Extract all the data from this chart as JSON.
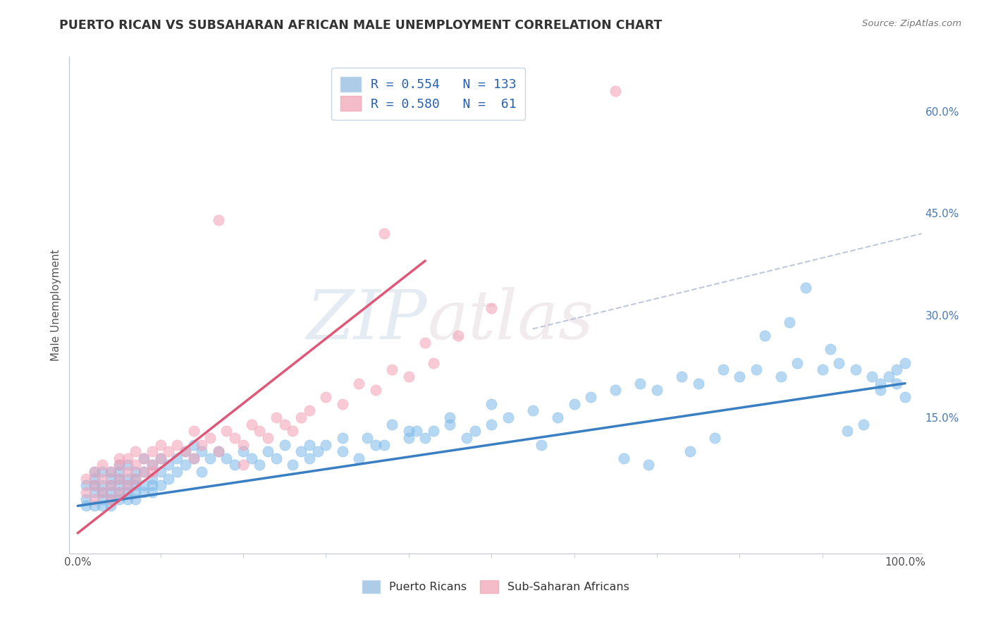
{
  "title": "PUERTO RICAN VS SUBSAHARAN AFRICAN MALE UNEMPLOYMENT CORRELATION CHART",
  "source": "Source: ZipAtlas.com",
  "ylabel": "Male Unemployment",
  "watermark_zip": "ZIP",
  "watermark_atlas": "atlas",
  "blue_color": "#7bb8e8",
  "pink_color": "#f4a0b5",
  "blue_line_color": "#3a7fc1",
  "pink_line_color": "#e05878",
  "dashed_line_color": "#b8c4d8",
  "xlim": [
    -0.01,
    1.02
  ],
  "ylim": [
    -0.05,
    0.68
  ],
  "ytick_positions": [
    0.0,
    0.15,
    0.3,
    0.45,
    0.6
  ],
  "ytick_labels": [
    "",
    "15.0%",
    "30.0%",
    "45.0%",
    "60.0%"
  ],
  "xtick_positions": [
    0.0,
    1.0
  ],
  "xtick_labels": [
    "0.0%",
    "100.0%"
  ],
  "blue_scatter_x": [
    0.01,
    0.01,
    0.01,
    0.02,
    0.02,
    0.02,
    0.02,
    0.02,
    0.03,
    0.03,
    0.03,
    0.03,
    0.03,
    0.04,
    0.04,
    0.04,
    0.04,
    0.04,
    0.04,
    0.05,
    0.05,
    0.05,
    0.05,
    0.05,
    0.05,
    0.06,
    0.06,
    0.06,
    0.06,
    0.06,
    0.07,
    0.07,
    0.07,
    0.07,
    0.07,
    0.08,
    0.08,
    0.08,
    0.08,
    0.09,
    0.09,
    0.09,
    0.09,
    0.1,
    0.1,
    0.1,
    0.11,
    0.11,
    0.12,
    0.12,
    0.13,
    0.13,
    0.14,
    0.14,
    0.15,
    0.15,
    0.16,
    0.17,
    0.18,
    0.19,
    0.2,
    0.21,
    0.22,
    0.23,
    0.24,
    0.25,
    0.27,
    0.28,
    0.3,
    0.32,
    0.35,
    0.37,
    0.4,
    0.41,
    0.43,
    0.45,
    0.47,
    0.5,
    0.52,
    0.55,
    0.58,
    0.6,
    0.62,
    0.65,
    0.68,
    0.7,
    0.73,
    0.75,
    0.78,
    0.8,
    0.82,
    0.85,
    0.87,
    0.9,
    0.92,
    0.94,
    0.96,
    0.97,
    0.98,
    0.99,
    1.0,
    0.97,
    0.99,
    1.0,
    0.95,
    0.93,
    0.88,
    0.91,
    0.83,
    0.86,
    0.74,
    0.77,
    0.66,
    0.69,
    0.56,
    0.48,
    0.42,
    0.36,
    0.29,
    0.34,
    0.26,
    0.4,
    0.45,
    0.5,
    0.38,
    0.32,
    0.28
  ],
  "blue_scatter_y": [
    0.03,
    0.05,
    0.02,
    0.04,
    0.06,
    0.02,
    0.05,
    0.07,
    0.03,
    0.05,
    0.07,
    0.02,
    0.04,
    0.03,
    0.05,
    0.07,
    0.02,
    0.04,
    0.06,
    0.04,
    0.06,
    0.08,
    0.03,
    0.05,
    0.07,
    0.04,
    0.06,
    0.08,
    0.03,
    0.05,
    0.05,
    0.07,
    0.03,
    0.04,
    0.06,
    0.05,
    0.07,
    0.09,
    0.04,
    0.06,
    0.08,
    0.04,
    0.05,
    0.07,
    0.09,
    0.05,
    0.08,
    0.06,
    0.07,
    0.09,
    0.08,
    0.1,
    0.09,
    0.11,
    0.1,
    0.07,
    0.09,
    0.1,
    0.09,
    0.08,
    0.1,
    0.09,
    0.08,
    0.1,
    0.09,
    0.11,
    0.1,
    0.09,
    0.11,
    0.1,
    0.12,
    0.11,
    0.12,
    0.13,
    0.13,
    0.14,
    0.12,
    0.14,
    0.15,
    0.16,
    0.15,
    0.17,
    0.18,
    0.19,
    0.2,
    0.19,
    0.21,
    0.2,
    0.22,
    0.21,
    0.22,
    0.21,
    0.23,
    0.22,
    0.23,
    0.22,
    0.21,
    0.2,
    0.21,
    0.22,
    0.23,
    0.19,
    0.2,
    0.18,
    0.14,
    0.13,
    0.34,
    0.25,
    0.27,
    0.29,
    0.1,
    0.12,
    0.09,
    0.08,
    0.11,
    0.13,
    0.12,
    0.11,
    0.1,
    0.09,
    0.08,
    0.13,
    0.15,
    0.17,
    0.14,
    0.12,
    0.11
  ],
  "pink_scatter_x": [
    0.01,
    0.01,
    0.02,
    0.02,
    0.02,
    0.03,
    0.03,
    0.03,
    0.04,
    0.04,
    0.04,
    0.05,
    0.05,
    0.05,
    0.05,
    0.06,
    0.06,
    0.06,
    0.07,
    0.07,
    0.07,
    0.08,
    0.08,
    0.09,
    0.09,
    0.09,
    0.1,
    0.1,
    0.11,
    0.12,
    0.13,
    0.14,
    0.14,
    0.15,
    0.16,
    0.17,
    0.18,
    0.19,
    0.2,
    0.21,
    0.22,
    0.23,
    0.24,
    0.25,
    0.26,
    0.27,
    0.28,
    0.3,
    0.32,
    0.34,
    0.36,
    0.38,
    0.4,
    0.43,
    0.46,
    0.37,
    0.42,
    0.5,
    0.65,
    0.17,
    0.2
  ],
  "pink_scatter_y": [
    0.04,
    0.06,
    0.03,
    0.05,
    0.07,
    0.04,
    0.06,
    0.08,
    0.05,
    0.07,
    0.03,
    0.06,
    0.08,
    0.04,
    0.09,
    0.07,
    0.09,
    0.05,
    0.08,
    0.1,
    0.06,
    0.07,
    0.09,
    0.08,
    0.1,
    0.07,
    0.09,
    0.11,
    0.1,
    0.11,
    0.1,
    0.09,
    0.13,
    0.11,
    0.12,
    0.1,
    0.13,
    0.12,
    0.11,
    0.14,
    0.13,
    0.12,
    0.15,
    0.14,
    0.13,
    0.15,
    0.16,
    0.18,
    0.17,
    0.2,
    0.19,
    0.22,
    0.21,
    0.23,
    0.27,
    0.42,
    0.26,
    0.31,
    0.63,
    0.44,
    0.08
  ],
  "blue_line_x": [
    0.0,
    1.0
  ],
  "blue_line_y": [
    0.02,
    0.2
  ],
  "pink_line_x": [
    0.0,
    0.42
  ],
  "pink_line_y": [
    -0.02,
    0.38
  ],
  "dashed_line_x": [
    0.55,
    1.02
  ],
  "dashed_line_y": [
    0.28,
    0.42
  ],
  "background_color": "#ffffff",
  "grid_color": "#d0d8e8",
  "title_color": "#333333",
  "axis_label_color": "#555555"
}
